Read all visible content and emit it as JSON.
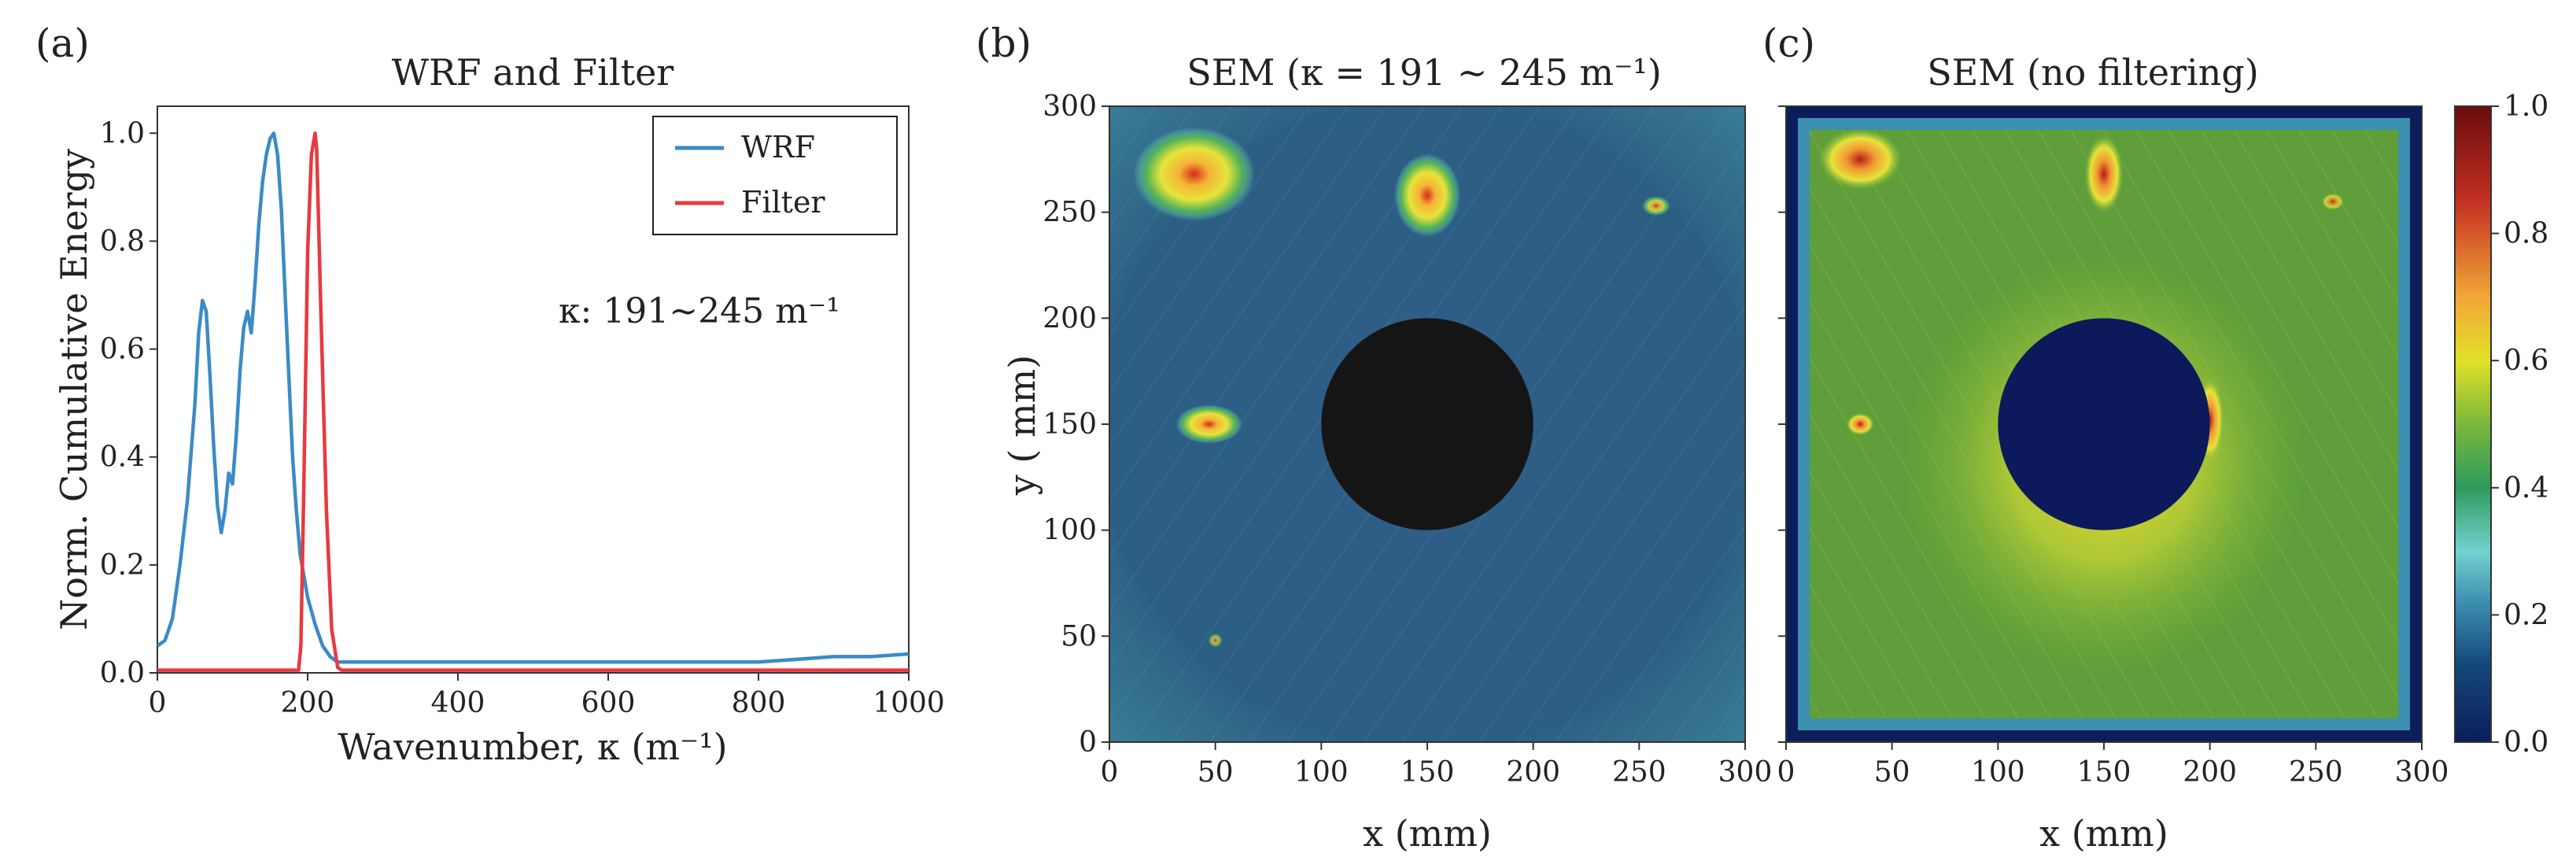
{
  "chart_data": [
    {
      "panel": "(a)",
      "type": "line",
      "title": "WRF and Filter",
      "xlabel": "Wavenumber, κ (m⁻¹)",
      "ylabel": "Norm. Cumulative Energy",
      "xlim": [
        0,
        1000
      ],
      "ylim": [
        0,
        1.05
      ],
      "xticks": [
        "0",
        "200",
        "400",
        "600",
        "800",
        "1000"
      ],
      "yticks": [
        "0.0",
        "0.2",
        "0.4",
        "0.6",
        "0.8",
        "1.0"
      ],
      "annotation": "κ: 191~245 m⁻¹",
      "legend_position": "top-right",
      "series": [
        {
          "name": "WRF",
          "color": "#3b8bc6",
          "x": [
            0,
            10,
            20,
            30,
            40,
            50,
            55,
            60,
            65,
            70,
            75,
            80,
            85,
            90,
            95,
            100,
            105,
            110,
            115,
            120,
            125,
            130,
            135,
            140,
            145,
            150,
            155,
            160,
            165,
            170,
            175,
            180,
            185,
            190,
            195,
            200,
            210,
            220,
            230,
            240,
            250,
            300,
            400,
            500,
            600,
            700,
            800,
            850,
            900,
            950,
            1000
          ],
          "y": [
            0.05,
            0.06,
            0.1,
            0.2,
            0.32,
            0.5,
            0.63,
            0.69,
            0.67,
            0.55,
            0.42,
            0.31,
            0.26,
            0.3,
            0.37,
            0.35,
            0.44,
            0.56,
            0.64,
            0.67,
            0.63,
            0.72,
            0.83,
            0.91,
            0.96,
            0.99,
            1.0,
            0.96,
            0.86,
            0.7,
            0.55,
            0.4,
            0.3,
            0.22,
            0.18,
            0.14,
            0.09,
            0.05,
            0.03,
            0.02,
            0.02,
            0.02,
            0.02,
            0.02,
            0.02,
            0.02,
            0.02,
            0.025,
            0.03,
            0.03,
            0.035
          ]
        },
        {
          "name": "Filter",
          "color": "#e8393f",
          "x": [
            0,
            188,
            191,
            195,
            200,
            205,
            210,
            212,
            218,
            225,
            232,
            240,
            245,
            1000
          ],
          "y": [
            0.005,
            0.005,
            0.05,
            0.35,
            0.78,
            0.96,
            1.0,
            0.97,
            0.65,
            0.3,
            0.08,
            0.01,
            0.005,
            0.005
          ]
        }
      ]
    },
    {
      "panel": "(b)",
      "type": "heatmap",
      "title": "SEM (κ = 191 ~ 245 m⁻¹)",
      "xlabel": "x (mm)",
      "ylabel": "y ( mm)",
      "xlim": [
        0,
        300
      ],
      "ylim": [
        0,
        300
      ],
      "xticks": [
        "0",
        "50",
        "100",
        "150",
        "200",
        "250",
        "300"
      ],
      "yticks": [
        "0",
        "50",
        "100",
        "150",
        "200",
        "250",
        "300"
      ],
      "hole": {
        "x": 150,
        "y": 150,
        "r": 50,
        "color": "#151515"
      },
      "hotspots": [
        {
          "label": "defect-upper-left",
          "x": 40,
          "y": 268,
          "w": 44,
          "h": 34,
          "level": 0.75
        },
        {
          "label": "defect-upper-center",
          "x": 150,
          "y": 258,
          "w": 24,
          "h": 30,
          "level": 0.75
        },
        {
          "label": "defect-upper-right",
          "x": 258,
          "y": 253,
          "w": 10,
          "h": 7,
          "level": 0.5
        },
        {
          "label": "defect-left",
          "x": 47,
          "y": 150,
          "w": 24,
          "h": 14,
          "level": 0.8
        },
        {
          "label": "defect-lower-left",
          "x": 50,
          "y": 48,
          "w": 5,
          "h": 5,
          "level": 0.35
        }
      ]
    },
    {
      "panel": "(c)",
      "type": "heatmap",
      "title": "SEM (no filtering)",
      "xlabel": "x (mm)",
      "ylabel": "",
      "xlim": [
        0,
        300
      ],
      "ylim": [
        0,
        300
      ],
      "xticks": [
        "0",
        "50",
        "100",
        "150",
        "200",
        "250",
        "300"
      ],
      "yticks": [
        "0",
        "50",
        "100",
        "150",
        "200",
        "250",
        "300"
      ],
      "hole": {
        "x": 150,
        "y": 150,
        "r": 50,
        "color": "#0c1a5c"
      },
      "colorbar": {
        "range": [
          0.0,
          1.0
        ],
        "ticks": [
          "0.0",
          "0.2",
          "0.4",
          "0.6",
          "0.8",
          "1.0"
        ]
      },
      "hotspots": [
        {
          "label": "defect-upper-left",
          "x": 35,
          "y": 275,
          "w": 30,
          "h": 22,
          "level": 0.75
        },
        {
          "label": "defect-upper-center",
          "x": 150,
          "y": 268,
          "w": 14,
          "h": 28,
          "level": 0.85
        },
        {
          "label": "defect-left",
          "x": 35,
          "y": 150,
          "w": 10,
          "h": 8,
          "level": 0.85
        },
        {
          "label": "hole-rim-right",
          "x": 200,
          "y": 152,
          "w": 10,
          "h": 30,
          "level": 0.8
        },
        {
          "label": "defect-upper-right",
          "x": 258,
          "y": 255,
          "w": 8,
          "h": 6,
          "level": 0.45
        }
      ]
    }
  ]
}
